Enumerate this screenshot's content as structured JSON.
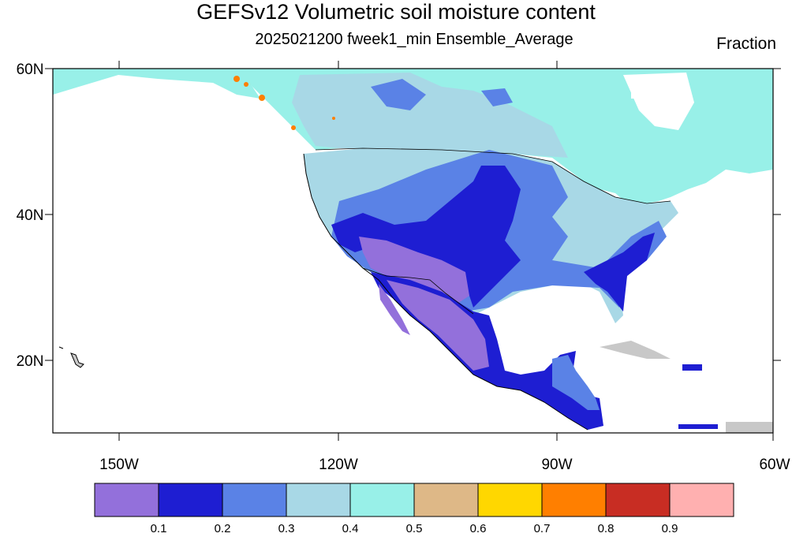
{
  "title": "GEFSv12 Volumetric soil moisture content",
  "subtitle": "2025021200 fweek1_min Ensemble_Average",
  "units": "Fraction",
  "map": {
    "projection": "cylindrical-equidistant",
    "lon_range": [
      -161,
      -60
    ],
    "lat_range": [
      10,
      60
    ],
    "background": "#ffffff",
    "missing_color": "#c8c8c8",
    "outline_color": "#000000"
  },
  "axes": {
    "lat_labels": [
      "60N",
      "40N",
      "20N"
    ],
    "lon_labels": [
      "150W",
      "120W",
      "90W",
      "60W"
    ]
  },
  "colorbar": {
    "colors": [
      "#9370db",
      "#1e1ed2",
      "#5a82e6",
      "#a8d8e6",
      "#98f0e8",
      "#deb887",
      "#ffd700",
      "#ff7f00",
      "#c82d23",
      "#ffb0b0"
    ],
    "labels": [
      "0.1",
      "0.2",
      "0.3",
      "0.4",
      "0.5",
      "0.6",
      "0.7",
      "0.8",
      "0.9"
    ]
  }
}
